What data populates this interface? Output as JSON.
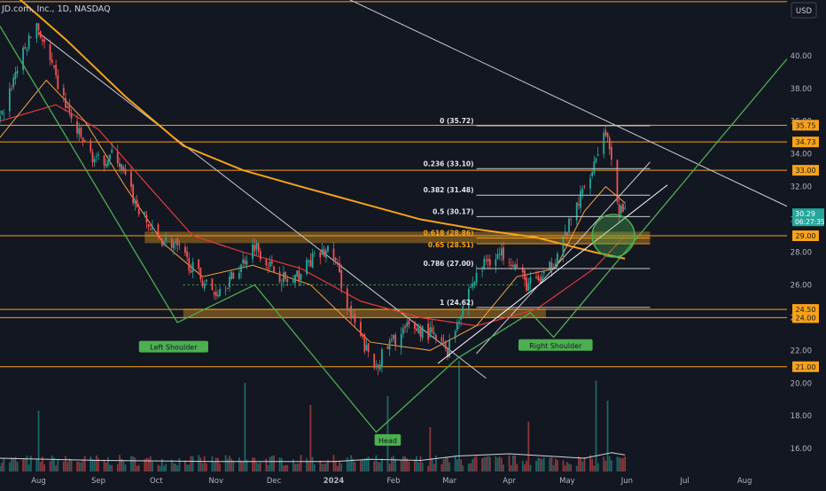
{
  "header": {
    "title": "JD.com, Inc., 1D, NASDAQ",
    "currency": "USD"
  },
  "colors": {
    "background": "#131722",
    "up": "#26a69a",
    "down": "#ef5350",
    "orange": "#f7a21b",
    "green": "#4caf50",
    "white": "#d1d4dc",
    "label_text": "#131722"
  },
  "chart_data": {
    "type": "candlestick",
    "symbol": "JD",
    "timeframe": "1D",
    "exchange": "NASDAQ",
    "y_axis": {
      "min": 14.6,
      "max": 43.4,
      "tick_labels": [
        "40.00",
        "38.00",
        "36.00",
        "34.00",
        "32.00",
        "30.00",
        "28.00",
        "26.00",
        "24.00",
        "22.00",
        "20.00",
        "18.00",
        "16.00"
      ]
    },
    "x_axis": {
      "start": "2023-07-12",
      "end": "2024-08-23",
      "tick_labels": [
        {
          "label": "Aug",
          "date": "2023-08-01"
        },
        {
          "label": "Sep",
          "date": "2023-09-01"
        },
        {
          "label": "Oct",
          "date": "2023-10-01"
        },
        {
          "label": "Nov",
          "date": "2023-11-01"
        },
        {
          "label": "Dec",
          "date": "2023-12-01"
        },
        {
          "label": "2024",
          "date": "2024-01-01"
        },
        {
          "label": "Feb",
          "date": "2024-02-01"
        },
        {
          "label": "Mar",
          "date": "2024-03-01"
        },
        {
          "label": "Apr",
          "date": "2024-04-01"
        },
        {
          "label": "May",
          "date": "2024-05-01"
        },
        {
          "label": "Jun",
          "date": "2024-06-01"
        },
        {
          "label": "Jul",
          "date": "2024-07-01"
        },
        {
          "label": "Aug",
          "date": "2024-08-01"
        }
      ]
    },
    "last_price": {
      "value": 30.29,
      "countdown": "06:27:35"
    },
    "horizontal_levels": [
      {
        "value": 43.3,
        "label": ""
      },
      {
        "value": 35.75,
        "label": "35.75"
      },
      {
        "value": 34.73,
        "label": "34.73"
      },
      {
        "value": 33.0,
        "label": "33.00"
      },
      {
        "value": 29.0,
        "label": "29.00"
      },
      {
        "value": 24.5,
        "label": "24.50"
      },
      {
        "value": 24.0,
        "label": "24.00"
      },
      {
        "value": 21.0,
        "label": "21.00"
      }
    ],
    "zones": [
      {
        "from": 28.55,
        "to": 29.25,
        "start": "2023-09-25",
        "end": "2024-06-13"
      },
      {
        "from": 24.0,
        "to": 24.55,
        "start": "2023-10-15",
        "end": "2024-04-20"
      }
    ],
    "fibonacci": {
      "start": "2024-03-15",
      "end": "2024-06-13",
      "levels": [
        {
          "ratio": "0 (35.72)",
          "value": 35.72
        },
        {
          "ratio": "0.236 (33.10)",
          "value": 33.1
        },
        {
          "ratio": "0.382 (31.48)",
          "value": 31.48
        },
        {
          "ratio": "0.5 (30.17)",
          "value": 30.17
        },
        {
          "ratio": "0.618 (28.86)",
          "value": 28.86
        },
        {
          "ratio": "0.65 (28.51)",
          "value": 28.51
        },
        {
          "ratio": "0.786 (27.00)",
          "value": 27.0
        },
        {
          "ratio": "1 (24.62)",
          "value": 24.62
        }
      ]
    },
    "pattern": {
      "labels": [
        {
          "text": "Left Shoulder",
          "date": "2023-10-10",
          "value": 22.2
        },
        {
          "text": "Head",
          "date": "2024-01-29",
          "value": 16.5
        },
        {
          "text": "Right Shoulder",
          "date": "2024-04-25",
          "value": 22.3
        }
      ],
      "points": [
        {
          "date": "2023-07-12",
          "value": 41.8
        },
        {
          "date": "2023-10-12",
          "value": 23.7
        },
        {
          "date": "2023-11-21",
          "value": 26.0
        },
        {
          "date": "2024-01-23",
          "value": 17.0
        },
        {
          "date": "2024-03-05",
          "value": 21.5
        },
        {
          "date": "2024-04-12",
          "value": 24.3
        },
        {
          "date": "2024-04-24",
          "value": 22.8
        },
        {
          "date": "2024-08-23",
          "value": 39.8
        }
      ],
      "neckline": [
        {
          "date": "2024-02-24",
          "value": 21.2
        },
        {
          "date": "2024-06-22",
          "value": 32.1
        }
      ],
      "circle": {
        "date": "2024-05-25",
        "value": 29.0
      }
    },
    "trendlines": [
      {
        "points": [
          {
            "date": "2023-08-01",
            "value": 41.4
          },
          {
            "date": "2024-03-20",
            "value": 20.3
          }
        ]
      },
      {
        "points": [
          {
            "date": "2023-10-01",
            "value": 49.0
          },
          {
            "date": "2024-08-23",
            "value": 30.8
          }
        ]
      },
      {
        "points": [
          {
            "date": "2024-03-15",
            "value": 21.8
          },
          {
            "date": "2024-06-13",
            "value": 33.5
          }
        ]
      }
    ],
    "dotted_level": {
      "value": 26.0,
      "start": "2023-10-15",
      "end": "2024-04-05"
    },
    "moving_averages": [
      {
        "color": "#f7a21b",
        "width": 2,
        "points": [
          {
            "date": "2023-07-12",
            "value": 44.5
          },
          {
            "date": "2023-08-15",
            "value": 41.0
          },
          {
            "date": "2023-09-15",
            "value": 37.5
          },
          {
            "date": "2023-10-15",
            "value": 34.5
          },
          {
            "date": "2023-11-15",
            "value": 33.0
          },
          {
            "date": "2023-12-15",
            "value": 32.0
          },
          {
            "date": "2024-01-15",
            "value": 31.0
          },
          {
            "date": "2024-02-15",
            "value": 30.0
          },
          {
            "date": "2024-03-15",
            "value": 29.4
          },
          {
            "date": "2024-04-15",
            "value": 28.9
          },
          {
            "date": "2024-05-15",
            "value": 28.0
          },
          {
            "date": "2024-05-31",
            "value": 27.6
          }
        ]
      },
      {
        "color": "#e53935",
        "width": 1.2,
        "points": [
          {
            "date": "2023-07-12",
            "value": 36.0
          },
          {
            "date": "2023-08-10",
            "value": 37.0
          },
          {
            "date": "2023-09-01",
            "value": 35.5
          },
          {
            "date": "2023-10-01",
            "value": 31.5
          },
          {
            "date": "2023-10-20",
            "value": 29.0
          },
          {
            "date": "2023-11-15",
            "value": 28.0
          },
          {
            "date": "2023-12-15",
            "value": 27.0
          },
          {
            "date": "2024-01-15",
            "value": 25.0
          },
          {
            "date": "2024-02-15",
            "value": 24.0
          },
          {
            "date": "2024-03-15",
            "value": 23.5
          },
          {
            "date": "2024-04-15",
            "value": 24.5
          },
          {
            "date": "2024-05-15",
            "value": 27.0
          },
          {
            "date": "2024-05-31",
            "value": 29.0
          }
        ]
      },
      {
        "color": "#f4a340",
        "width": 1,
        "points": [
          {
            "date": "2023-07-12",
            "value": 35.0
          },
          {
            "date": "2023-08-05",
            "value": 38.5
          },
          {
            "date": "2023-08-25",
            "value": 36.0
          },
          {
            "date": "2023-09-15",
            "value": 32.0
          },
          {
            "date": "2023-10-05",
            "value": 28.5
          },
          {
            "date": "2023-10-25",
            "value": 26.5
          },
          {
            "date": "2023-11-20",
            "value": 27.2
          },
          {
            "date": "2023-12-20",
            "value": 26.0
          },
          {
            "date": "2024-01-20",
            "value": 22.5
          },
          {
            "date": "2024-02-20",
            "value": 22.0
          },
          {
            "date": "2024-03-15",
            "value": 23.5
          },
          {
            "date": "2024-04-05",
            "value": 26.5
          },
          {
            "date": "2024-04-25",
            "value": 27.0
          },
          {
            "date": "2024-05-10",
            "value": 30.5
          },
          {
            "date": "2024-05-21",
            "value": 32.0
          },
          {
            "date": "2024-05-31",
            "value": 31.0
          }
        ]
      }
    ],
    "price_path": [
      {
        "date": "2023-07-12",
        "value": 36.0
      },
      {
        "date": "2023-07-20",
        "value": 39.0
      },
      {
        "date": "2023-07-31",
        "value": 42.0
      },
      {
        "date": "2023-08-10",
        "value": 38.5
      },
      {
        "date": "2023-08-20",
        "value": 35.5
      },
      {
        "date": "2023-08-31",
        "value": 33.5
      },
      {
        "date": "2023-09-10",
        "value": 34.0
      },
      {
        "date": "2023-09-20",
        "value": 31.0
      },
      {
        "date": "2023-09-30",
        "value": 29.0
      },
      {
        "date": "2023-10-10",
        "value": 28.5
      },
      {
        "date": "2023-10-20",
        "value": 27.0
      },
      {
        "date": "2023-10-31",
        "value": 25.5
      },
      {
        "date": "2023-11-10",
        "value": 26.5
      },
      {
        "date": "2023-11-21",
        "value": 28.5
      },
      {
        "date": "2023-11-30",
        "value": 27.0
      },
      {
        "date": "2023-12-10",
        "value": 26.0
      },
      {
        "date": "2023-12-20",
        "value": 27.5
      },
      {
        "date": "2023-12-31",
        "value": 28.2
      },
      {
        "date": "2024-01-10",
        "value": 24.0
      },
      {
        "date": "2024-01-22",
        "value": 21.0
      },
      {
        "date": "2024-01-31",
        "value": 22.5
      },
      {
        "date": "2024-02-10",
        "value": 23.5
      },
      {
        "date": "2024-02-20",
        "value": 23.0
      },
      {
        "date": "2024-02-29",
        "value": 22.0
      },
      {
        "date": "2024-03-10",
        "value": 25.5
      },
      {
        "date": "2024-03-20",
        "value": 27.5
      },
      {
        "date": "2024-03-31",
        "value": 28.0
      },
      {
        "date": "2024-04-10",
        "value": 26.0
      },
      {
        "date": "2024-04-20",
        "value": 26.5
      },
      {
        "date": "2024-04-30",
        "value": 29.0
      },
      {
        "date": "2024-05-10",
        "value": 32.0
      },
      {
        "date": "2024-05-18",
        "value": 34.5
      },
      {
        "date": "2024-05-21",
        "value": 35.5
      },
      {
        "date": "2024-05-25",
        "value": 32.5
      },
      {
        "date": "2024-05-28",
        "value": 30.6
      },
      {
        "date": "2024-05-31",
        "value": 30.29
      }
    ],
    "volume": {
      "scale_max": 100,
      "average_line": [
        {
          "date": "2023-07-12",
          "value": 12
        },
        {
          "date": "2023-09-01",
          "value": 10
        },
        {
          "date": "2023-11-01",
          "value": 9
        },
        {
          "date": "2024-01-01",
          "value": 9
        },
        {
          "date": "2024-01-20",
          "value": 11
        },
        {
          "date": "2024-02-15",
          "value": 10
        },
        {
          "date": "2024-03-05",
          "value": 14
        },
        {
          "date": "2024-04-01",
          "value": 16
        },
        {
          "date": "2024-04-20",
          "value": 14
        },
        {
          "date": "2024-05-10",
          "value": 12
        },
        {
          "date": "2024-05-24",
          "value": 17
        },
        {
          "date": "2024-05-31",
          "value": 15
        }
      ]
    }
  }
}
